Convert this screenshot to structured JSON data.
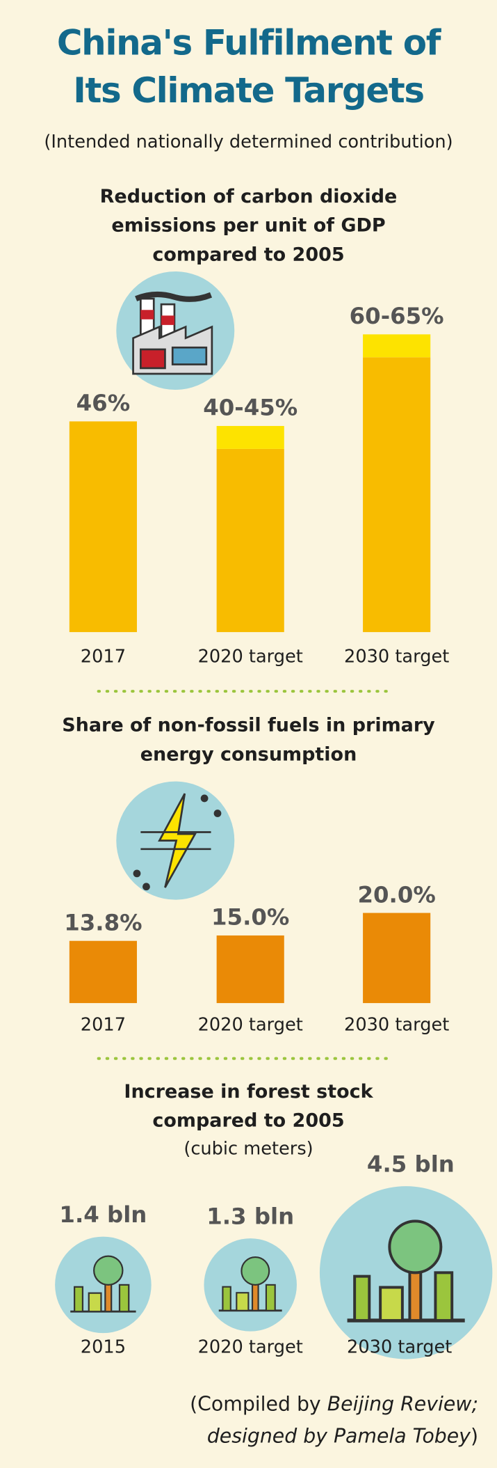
{
  "header": {
    "title": [
      "China's Fulfilment of",
      "Its Climate Targets"
    ],
    "subtitle": "(Intended nationally determined contribution)"
  },
  "chart_data": [
    {
      "type": "bar",
      "title": [
        "Reduction of carbon dioxide",
        "emissions per unit of GDP",
        "compared to 2005"
      ],
      "categories": [
        "2017",
        "2020 target",
        "2030 target"
      ],
      "values": [
        46,
        40,
        60
      ],
      "upper_values": [
        null,
        45,
        65
      ],
      "value_labels": [
        "46%",
        "40-45%",
        "60-65%"
      ],
      "color": "#f8bc00",
      "upper_color": "#fde300",
      "ylim": [
        0,
        65
      ]
    },
    {
      "type": "bar",
      "title": [
        "Share of non-fossil fuels in primary",
        "energy consumption"
      ],
      "categories": [
        "2017",
        "2020 target",
        "2030 target"
      ],
      "values": [
        13.8,
        15.0,
        20.0
      ],
      "value_labels": [
        "13.8%",
        "15.0%",
        "20.0%"
      ],
      "color": "#ea8a06",
      "ylim": [
        0,
        20
      ]
    },
    {
      "type": "bubble",
      "title": [
        "Increase in forest stock",
        "compared to 2005"
      ],
      "subtitle": "(cubic meters)",
      "categories": [
        "2015",
        "2020 target",
        "2030 target"
      ],
      "values": [
        1.4,
        1.3,
        4.5
      ],
      "value_labels": [
        "1.4 bln",
        "1.3 bln",
        "4.5 bln"
      ],
      "color": "#a5d6dc"
    }
  ],
  "footer": {
    "line1": "(Compiled by",
    "line1_italic": "Beijing Review;",
    "line2_italic": "designed by Pamela Tobey",
    "line2": ")"
  }
}
